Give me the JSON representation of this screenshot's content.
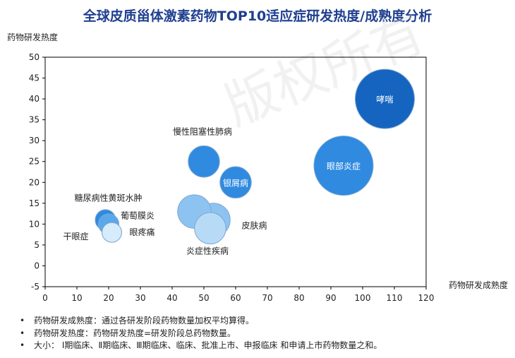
{
  "title": "全球皮质甾体激素药物TOP10适应症研发热度/成熟度分析",
  "watermark": "版权所有",
  "chart_data": {
    "type": "bubble",
    "title": "全球皮质甾体激素药物TOP10适应症研发热度/成熟度分析",
    "xlabel": "药物研发成熟度",
    "ylabel": "药物研发热度",
    "xlim": [
      0,
      120
    ],
    "ylim": [
      -5,
      50
    ],
    "xticks": [
      0,
      10,
      20,
      30,
      40,
      50,
      60,
      70,
      80,
      90,
      100,
      110,
      120
    ],
    "yticks": [
      -5,
      0,
      5,
      10,
      15,
      20,
      25,
      30,
      35,
      40,
      45,
      50
    ],
    "grid": false,
    "points": [
      {
        "label": "哮喘",
        "x": 107,
        "y": 40,
        "size": 100,
        "color": "#1565c0"
      },
      {
        "label": "眼部炎症",
        "x": 94,
        "y": 24,
        "size": 100,
        "color": "#2f8ae0"
      },
      {
        "label": "慢性阻塞性肺病",
        "x": 50,
        "y": 25,
        "size": 28,
        "color": "#2f8ae0"
      },
      {
        "label": "银屑病",
        "x": 60,
        "y": 20,
        "size": 28,
        "color": "#2f8ae0"
      },
      {
        "label": "皮肤病",
        "x": 53,
        "y": 11,
        "size": 32,
        "color": "#8cc3f0"
      },
      {
        "label": "炎症性疾病",
        "x": 52,
        "y": 9,
        "size": 28,
        "color": "#b7dbf7"
      },
      {
        "label": "",
        "x": 47,
        "y": 13,
        "size": 32,
        "color": "#8cc3f0"
      },
      {
        "label": "糖尿病性黄斑水肿",
        "x": 19,
        "y": 11,
        "size": 12,
        "color": "#2f8ae0"
      },
      {
        "label": "葡萄膜炎",
        "x": 20,
        "y": 10,
        "size": 12,
        "color": "#5aa8ea"
      },
      {
        "label": "眼疼痛",
        "x": 21,
        "y": 8,
        "size": 11,
        "color": "#d6ebfb"
      },
      {
        "label": "干眼症",
        "x": 21,
        "y": 8,
        "size": 11,
        "color": "#d6ebfb"
      }
    ]
  },
  "notes": [
    "药物研发成熟度：通过各研发阶段药物数量加权平均算得。",
    "药物研发热度：药物研发热度=研发阶段总药物数量。",
    "大小： Ⅰ期临床、Ⅱ期临床、Ⅲ期临床、临床、批准上市、申报临床 和申请上市药物数量之和。"
  ]
}
